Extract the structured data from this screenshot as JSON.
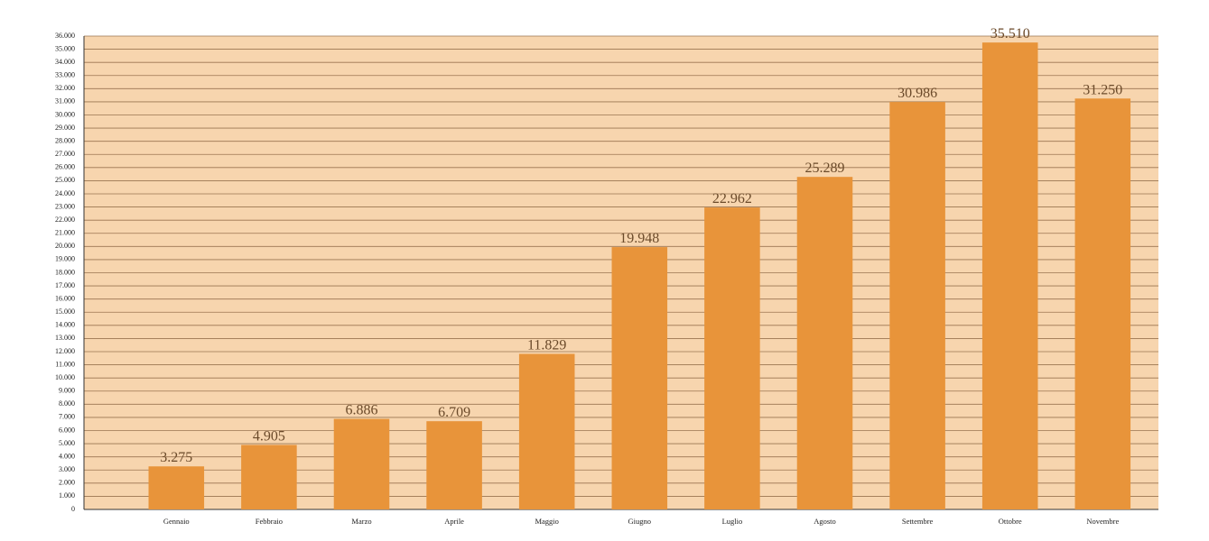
{
  "chart_data": {
    "type": "bar",
    "categories": [
      "Gennaio",
      "Febbraio",
      "Marzo",
      "Aprile",
      "Maggio",
      "Giugno",
      "Luglio",
      "Agosto",
      "Settembre",
      "Ottobre",
      "Novembre"
    ],
    "values": [
      3275,
      4905,
      6886,
      6709,
      11829,
      19948,
      22962,
      25289,
      30986,
      35510,
      31250
    ],
    "value_labels": [
      "3.275",
      "4.905",
      "6.886",
      "6.709",
      "11.829",
      "19.948",
      "22.962",
      "25.289",
      "30.986",
      "35.510",
      "31.250"
    ],
    "color": "#e8943a",
    "background": "#f7d5ae",
    "grid": true,
    "ylim": [
      0,
      36000
    ],
    "yticks": [
      0,
      {
        "value": 1000,
        "label": "1.000"
      },
      {
        "value": 2000,
        "label": "2.000"
      },
      {
        "value": 3000,
        "label": "3.000"
      },
      {
        "value": 4000,
        "label": "4.000"
      },
      {
        "value": 5000,
        "label": "5.000"
      },
      {
        "value": 6000,
        "label": "6.000"
      },
      {
        "value": 7000,
        "label": "7.000"
      },
      {
        "value": 8000,
        "label": "8.000"
      },
      {
        "value": 9000,
        "label": "9.000"
      },
      {
        "value": 10000,
        "label": "10.000"
      },
      {
        "value": 11000,
        "label": "11.000"
      },
      {
        "value": 12000,
        "label": "12.000"
      },
      {
        "value": 13000,
        "label": "13.000"
      },
      {
        "value": 14000,
        "label": "14.000"
      },
      {
        "value": 15000,
        "label": "15.000"
      },
      {
        "value": 16000,
        "label": "16.000"
      },
      {
        "value": 17000,
        "label": "17.000"
      },
      {
        "value": 18000,
        "label": "18.000"
      },
      {
        "value": 19000,
        "label": "19.000"
      },
      {
        "value": 20000,
        "label": "20.000"
      },
      {
        "value": 21000,
        "label": "21.000"
      },
      {
        "value": 22000,
        "label": "22.000"
      },
      {
        "value": 23000,
        "label": "23.000"
      },
      {
        "value": 24000,
        "label": "24.000"
      },
      {
        "value": 25000,
        "label": "25.000"
      },
      {
        "value": 26000,
        "label": "26.000"
      },
      {
        "value": 27000,
        "label": "27.000"
      },
      {
        "value": 28000,
        "label": "28.000"
      },
      {
        "value": 29000,
        "label": "29.000"
      },
      {
        "value": 30000,
        "label": "30.000"
      },
      {
        "value": 31000,
        "label": "31.000"
      },
      {
        "value": 32000,
        "label": "32.000"
      },
      {
        "value": 33000,
        "label": "33.000"
      },
      {
        "value": 34000,
        "label": "34.000"
      },
      {
        "value": 35000,
        "label": "35.000"
      },
      {
        "value": 36000,
        "label": "36.000"
      }
    ]
  }
}
